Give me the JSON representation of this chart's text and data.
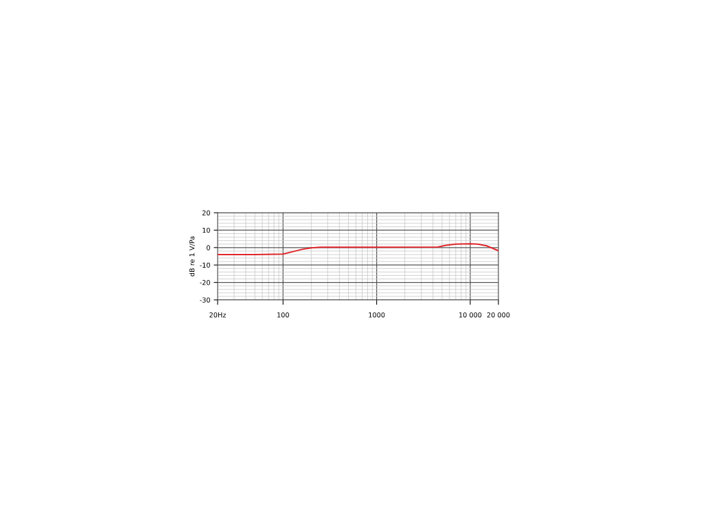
{
  "chart_data": {
    "type": "line",
    "ylabel": "dB re 1 V/Pa",
    "log": "x",
    "grid": true,
    "marker": "none",
    "line_style": "solid",
    "xlim": [
      20,
      20000
    ],
    "xticks": [
      {
        "value": 20,
        "label": "20Hz"
      },
      100,
      1000,
      {
        "value": 10000,
        "label": "10 000"
      },
      {
        "value": 20000,
        "label": "20 000"
      }
    ],
    "ylim": [
      -30,
      20
    ],
    "yticks": [
      -30,
      -20,
      -10,
      0,
      10,
      20
    ],
    "series": [
      {
        "color": "#e0262b",
        "x": [
          20,
          50,
          100,
          130,
          160,
          200,
          250,
          1000,
          4500,
          5500,
          7000,
          10000,
          12000,
          15000,
          20000
        ],
        "values": [
          -4,
          -4,
          -3.7,
          -2.2,
          -1.0,
          -0.2,
          0.2,
          0.2,
          0.3,
          1.3,
          2.0,
          2.2,
          2.0,
          1.0,
          -1.8
        ]
      }
    ]
  }
}
